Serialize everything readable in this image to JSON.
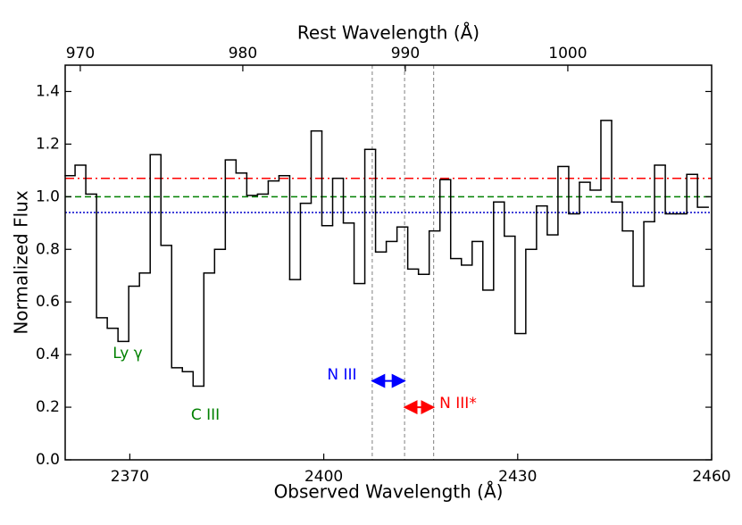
{
  "chart_data": {
    "type": "step",
    "xlabel": "Observed Wavelength (Å)",
    "ylabel": "Normalized Flux",
    "x2label": "Rest Wavelength (Å)",
    "xlim": [
      2360,
      2460
    ],
    "xticks": [
      2370,
      2400,
      2430,
      2460
    ],
    "x2lim": [
      969.07,
      1008.85
    ],
    "x2ticks": [
      970,
      980,
      990,
      1000
    ],
    "ylim": [
      0,
      1.5
    ],
    "yticks": [
      {
        "value": 0,
        "label": "0.0"
      },
      0.2,
      0.4,
      0.6,
      0.8,
      {
        "value": 1,
        "label": "1.0"
      },
      1.2,
      1.4
    ],
    "color": "#000000",
    "x": [
      2360.7,
      2362.36,
      2364.02,
      2365.68,
      2367.34,
      2369.0,
      2370.66,
      2372.32,
      2373.98,
      2375.64,
      2377.3,
      2378.96,
      2380.62,
      2382.28,
      2383.94,
      2385.6,
      2387.26,
      2388.92,
      2390.58,
      2392.24,
      2393.9,
      2395.56,
      2397.22,
      2398.88,
      2400.54,
      2402.2,
      2403.86,
      2405.52,
      2407.18,
      2408.84,
      2410.5,
      2412.16,
      2413.82,
      2415.48,
      2417.14,
      2418.8,
      2420.46,
      2422.12,
      2423.78,
      2425.44,
      2427.1,
      2428.76,
      2430.42,
      2432.08,
      2433.74,
      2435.4,
      2437.06,
      2438.72,
      2440.38,
      2442.04,
      2443.7,
      2445.36,
      2447.02,
      2448.68,
      2450.34,
      2452.0,
      2453.66,
      2455.32,
      2456.98,
      2458.64
    ],
    "values": [
      1.08,
      1.12,
      1.01,
      0.54,
      0.5,
      0.45,
      0.66,
      0.71,
      1.16,
      0.815,
      0.35,
      0.335,
      0.28,
      0.71,
      0.8,
      1.14,
      1.09,
      1.005,
      1.01,
      1.06,
      1.08,
      0.685,
      0.975,
      1.25,
      0.89,
      1.07,
      0.9,
      0.67,
      1.18,
      0.79,
      0.83,
      0.885,
      0.725,
      0.705,
      0.87,
      1.065,
      0.765,
      0.74,
      0.83,
      0.645,
      0.98,
      0.85,
      0.48,
      0.8,
      0.965,
      0.855,
      1.115,
      0.935,
      1.055,
      1.025,
      1.29,
      0.98,
      0.87,
      0.66,
      0.905,
      1.12,
      0.935,
      0.935,
      1.085,
      0.96
    ],
    "hlines": [
      {
        "y": 1.07,
        "color": "#ff0000",
        "style": "dashdot"
      },
      {
        "y": 1.0,
        "color": "#008000",
        "style": "dashed"
      },
      {
        "y": 0.94,
        "color": "#0000cc",
        "style": "dotted"
      }
    ],
    "vlines": {
      "x": [
        2407.5,
        2412.5,
        2417.0
      ],
      "color": "#808080"
    },
    "arrows": [
      {
        "x": [
          2407.5,
          2412.5
        ],
        "y": 0.3,
        "color": "#0000ff",
        "text": "N III"
      },
      {
        "x": [
          2412.5,
          2417.0
        ],
        "y": 0.2,
        "color": "#ff0000",
        "text": "N III*"
      }
    ],
    "annotations": [
      {
        "text": "Ly γ",
        "color": "#008000"
      },
      {
        "text": "C III",
        "color": "#008000"
      }
    ]
  }
}
